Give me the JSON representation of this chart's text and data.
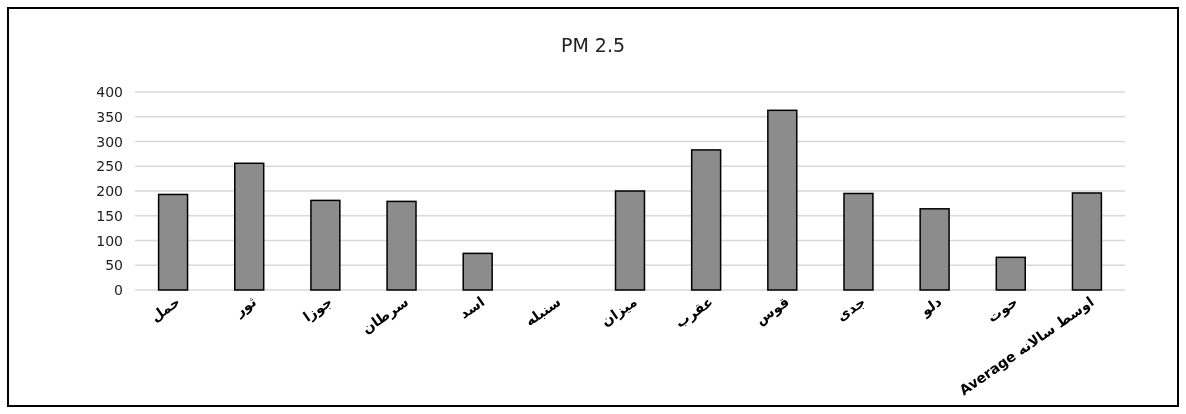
{
  "chart_data": {
    "type": "bar",
    "title": "PM 2.5",
    "categories": [
      "حمل",
      "ثور",
      "جوزا",
      "سرطان",
      "اسد",
      "سنبله",
      "میزان",
      "عقرب",
      "قوس",
      "جدی",
      "دلو",
      "حوت",
      "Average اوسط سالانه"
    ],
    "values": [
      193,
      256,
      181,
      179,
      74,
      null,
      200,
      283,
      363,
      195,
      164,
      66,
      196
    ],
    "color": "#8c8c8c",
    "ylim": [
      0,
      400
    ],
    "yticks": [
      0,
      50,
      100,
      150,
      200,
      250,
      300,
      350,
      400
    ],
    "grid": "y"
  }
}
